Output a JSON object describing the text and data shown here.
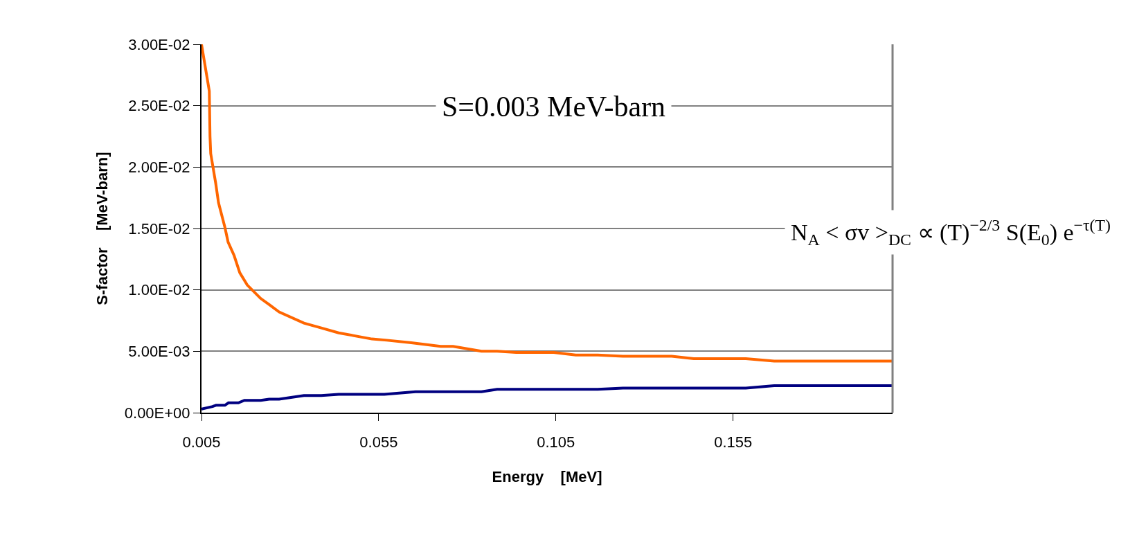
{
  "chart_data": {
    "type": "line",
    "xlabel": "Energy    [MeV]",
    "ylabel": "S-factor    [MeV-barn]",
    "xlim": [
      0.005,
      0.2
    ],
    "xticks": [
      0.005,
      0.055,
      0.105,
      0.155
    ],
    "ylim": [
      0,
      0.03
    ],
    "yticks": [
      {
        "value": 0,
        "label": "0.00E+00"
      },
      {
        "value": 0.005,
        "label": "5.00E-03"
      },
      {
        "value": 0.01,
        "label": "1.00E-02"
      },
      {
        "value": 0.015,
        "label": "1.50E-02"
      },
      {
        "value": 0.02,
        "label": "2.00E-02"
      },
      {
        "value": 0.025,
        "label": "2.50E-02"
      },
      {
        "value": 0.03,
        "label": "3.00E-02"
      }
    ],
    "grid": "y",
    "marker": "none",
    "line_style": "solid",
    "annotations": [
      "S=0.003 MeV-barn",
      "N$_{A}$ < σv >$_{DC}$ ∝ (T)$^{−2/3}$ S(E$_{0}$) e$^{−τ(T)}$"
    ],
    "series": [
      {
        "color": "#ff6600",
        "x": [
          0.005,
          0.0072,
          0.0074,
          0.0076,
          0.009,
          0.0098,
          0.0116,
          0.0125,
          0.0142,
          0.0158,
          0.0179,
          0.0217,
          0.0241,
          0.0269,
          0.0339,
          0.0388,
          0.0437,
          0.0531,
          0.0573,
          0.0642,
          0.0725,
          0.076,
          0.084,
          0.0884,
          0.0938,
          0.1044,
          0.1106,
          0.1168,
          0.1239,
          0.1377,
          0.1439,
          0.1586,
          0.1666,
          0.1998
        ],
        "values": [
          0.03,
          0.0262,
          0.0225,
          0.0211,
          0.0187,
          0.0171,
          0.0151,
          0.0139,
          0.0128,
          0.0114,
          0.0104,
          0.0093,
          0.0088,
          0.0082,
          0.0073,
          0.0069,
          0.0065,
          0.006,
          0.0059,
          0.0057,
          0.0054,
          0.0054,
          0.005,
          0.005,
          0.0049,
          0.0049,
          0.0047,
          0.0047,
          0.0046,
          0.0046,
          0.0044,
          0.0044,
          0.0042,
          0.0042
        ]
      },
      {
        "color": "#000080",
        "x": [
          0.005,
          0.0081,
          0.0091,
          0.0116,
          0.0126,
          0.0154,
          0.0171,
          0.0217,
          0.0241,
          0.0269,
          0.0339,
          0.0388,
          0.0437,
          0.0566,
          0.0654,
          0.084,
          0.0884,
          0.1168,
          0.1239,
          0.1586,
          0.1666,
          0.1998
        ],
        "values": [
          0.0003,
          0.0005,
          0.0006,
          0.0006,
          0.0008,
          0.0008,
          0.001,
          0.001,
          0.0011,
          0.0011,
          0.0014,
          0.0014,
          0.0015,
          0.0015,
          0.0017,
          0.0017,
          0.0019,
          0.0019,
          0.002,
          0.002,
          0.0022,
          0.0022
        ]
      }
    ]
  }
}
